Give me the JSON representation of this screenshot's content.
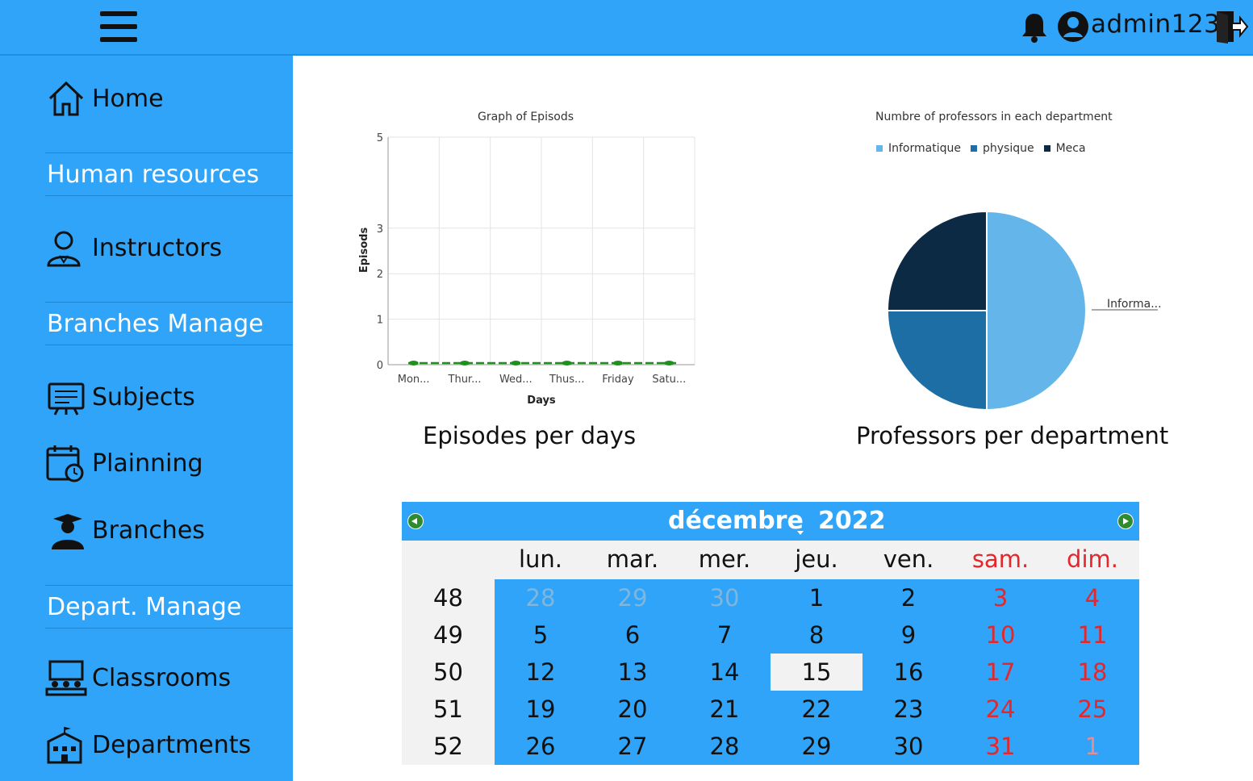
{
  "header": {
    "username": "admin123",
    "icons": [
      "hamburger-menu-icon",
      "bell-icon",
      "user-avatar-icon",
      "logout-icon"
    ]
  },
  "sidebar": {
    "items": [
      {
        "type": "link",
        "label": "Home",
        "icon": "home-icon"
      },
      {
        "type": "section",
        "label": "Human resources"
      },
      {
        "type": "link",
        "label": "Instructors",
        "icon": "instructor-icon"
      },
      {
        "type": "section",
        "label": "Branches Manage"
      },
      {
        "type": "link",
        "label": "Subjects",
        "icon": "subjects-icon"
      },
      {
        "type": "link",
        "label": "Plainning",
        "icon": "planning-calendar-icon"
      },
      {
        "type": "link",
        "label": "Branches",
        "icon": "graduate-icon"
      },
      {
        "type": "section",
        "label": "Depart. Manage"
      },
      {
        "type": "link",
        "label": "Classrooms",
        "icon": "classroom-icon"
      },
      {
        "type": "link",
        "label": "Departments",
        "icon": "building-icon"
      }
    ]
  },
  "charts": {
    "episodes_caption": "Episodes per days",
    "professors_caption": "Professors per department"
  },
  "chart_data": [
    {
      "type": "line",
      "title": "Graph of Episods",
      "xlabel": "Days",
      "ylabel": "Episods",
      "categories": [
        "Mon...",
        "Thur...",
        "Wed...",
        "Thus...",
        "Friday",
        "Satu..."
      ],
      "series": [
        {
          "values": [
            0,
            0,
            0,
            0,
            0,
            0
          ],
          "color": "#1f8f1f"
        }
      ],
      "yticks": [
        0,
        1,
        2,
        3,
        5
      ],
      "ylim": [
        0,
        5
      ],
      "grid": true
    },
    {
      "type": "pie",
      "title": "Numbre of professors in each department",
      "legend_position": "top",
      "slices": [
        {
          "label": "Informatique",
          "value": 50,
          "color": "#64b5e9"
        },
        {
          "label": "physique",
          "value": 25,
          "color": "#1c6ea4"
        },
        {
          "label": "Meca",
          "value": 25,
          "color": "#0c2a44"
        }
      ],
      "slice_label": "Informa..."
    }
  ],
  "calendar": {
    "month": "décembre",
    "year": "2022",
    "weekdays": [
      "lun.",
      "mar.",
      "mer.",
      "jeu.",
      "ven.",
      "sam.",
      "dim."
    ],
    "weeks": [
      {
        "number": "48",
        "days": [
          "28",
          "29",
          "30",
          "1",
          "2",
          "3",
          "4"
        ]
      },
      {
        "number": "49",
        "days": [
          "5",
          "6",
          "7",
          "8",
          "9",
          "10",
          "11"
        ]
      },
      {
        "number": "50",
        "days": [
          "12",
          "13",
          "14",
          "15",
          "16",
          "17",
          "18"
        ]
      },
      {
        "number": "51",
        "days": [
          "19",
          "20",
          "21",
          "22",
          "23",
          "24",
          "25"
        ]
      },
      {
        "number": "52",
        "days": [
          "26",
          "27",
          "28",
          "29",
          "30",
          "31",
          "1"
        ]
      }
    ],
    "today": "15",
    "colors": {
      "header": "#2fa4f9",
      "weekend": "#e5262a",
      "nav": "#2e8b2e"
    }
  }
}
